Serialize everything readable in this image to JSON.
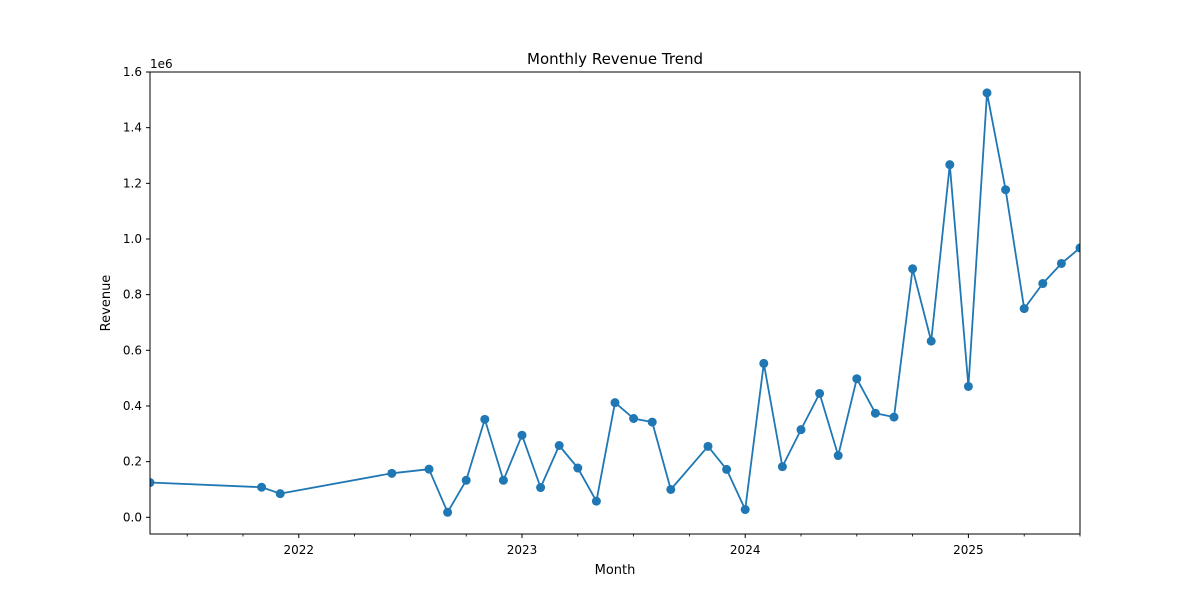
{
  "chart_data": {
    "type": "line",
    "title": "Monthly Revenue Trend",
    "xlabel": "Month",
    "ylabel": "Revenue",
    "y_scale_label": "1e6",
    "xlim": [
      "2021-05",
      "2025-07"
    ],
    "ylim": [
      -60000,
      1600000
    ],
    "x_ticks": [
      {
        "date": "2022-01",
        "label": "2022"
      },
      {
        "date": "2023-01",
        "label": "2023"
      },
      {
        "date": "2024-01",
        "label": "2024"
      },
      {
        "date": "2025-01",
        "label": "2025"
      }
    ],
    "y_ticks": [
      {
        "value": 0,
        "label": "0.0"
      },
      {
        "value": 200000,
        "label": "0.2"
      },
      {
        "value": 400000,
        "label": "0.4"
      },
      {
        "value": 600000,
        "label": "0.6"
      },
      {
        "value": 800000,
        "label": "0.8"
      },
      {
        "value": 1000000,
        "label": "1.0"
      },
      {
        "value": 1200000,
        "label": "1.2"
      },
      {
        "value": 1400000,
        "label": "1.4"
      },
      {
        "value": 1600000,
        "label": "1.6"
      }
    ],
    "grid": false,
    "color": "#1f77b4",
    "marker": "circle",
    "series": [
      {
        "x": [
          "2021-05",
          "2021-11",
          "2021-12",
          "2022-06",
          "2022-08",
          "2022-09",
          "2022-10",
          "2022-11",
          "2022-12",
          "2023-01",
          "2023-02",
          "2023-03",
          "2023-04",
          "2023-05",
          "2023-06",
          "2023-07",
          "2023-08",
          "2023-09",
          "2023-11",
          "2023-12",
          "2024-01",
          "2024-02",
          "2024-03",
          "2024-04",
          "2024-05",
          "2024-06",
          "2024-07",
          "2024-08",
          "2024-09",
          "2024-10",
          "2024-11",
          "2024-12",
          "2025-01",
          "2025-02",
          "2025-03",
          "2025-04",
          "2025-05",
          "2025-06",
          "2025-07"
        ],
        "y": [
          125000,
          108000,
          85000,
          158000,
          173000,
          18000,
          133000,
          352000,
          133000,
          295000,
          107000,
          258000,
          177000,
          58000,
          412000,
          355000,
          342000,
          100000,
          255000,
          172000,
          28000,
          553000,
          182000,
          315000,
          445000,
          222000,
          498000,
          374000,
          360000,
          893000,
          633000,
          1267000,
          470000,
          1525000,
          1177000,
          750000,
          840000,
          912000,
          968000
        ]
      }
    ]
  }
}
